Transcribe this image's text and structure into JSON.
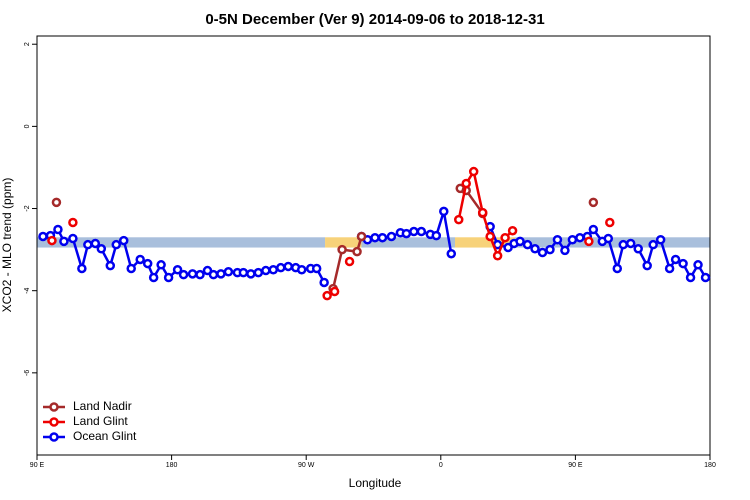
{
  "chart_data": {
    "type": "line",
    "title": "0-5N December (Ver 9)   2014-09-06 to 2018-12-31",
    "xlabel": "Longitude",
    "ylabel": "XCO2 - MLO trend (ppm)",
    "xlim": [
      90,
      540
    ],
    "ylim": [
      -8,
      2.2
    ],
    "xticks": [
      {
        "value": 90,
        "label": "90 E"
      },
      180,
      {
        "value": 270,
        "label": "90 W"
      },
      {
        "value": 360,
        "label": "0"
      },
      {
        "value": 450,
        "label": "90 E"
      },
      {
        "value": 540,
        "label": "180"
      }
    ],
    "yticks": [
      -6,
      -4,
      -2,
      0,
      2
    ],
    "legend": "lower left",
    "band_y": [
      -2.95,
      -2.7
    ],
    "bands": [
      {
        "x": [
          90,
          282.6
        ],
        "color": "#a9bfdc"
      },
      {
        "x": [
          282.6,
          307
        ],
        "color": "#f7d27a"
      },
      {
        "x": [
          307,
          369.5
        ],
        "color": "#a9bfdc"
      },
      {
        "x": [
          369.5,
          409.6
        ],
        "color": "#f7d27a"
      },
      {
        "x": [
          409.6,
          540
        ],
        "color": "#a9bfdc"
      }
    ],
    "series": [
      {
        "name": "Ocean Glint",
        "color": "#0000ee",
        "x": [
          94,
          99,
          104,
          108,
          114,
          120,
          124,
          129,
          133,
          139,
          143,
          148,
          153,
          159,
          164,
          168,
          173,
          178,
          184,
          188,
          194,
          199,
          204,
          208,
          213,
          218,
          224,
          228,
          233,
          238,
          243,
          248,
          253,
          258,
          263,
          267,
          273,
          277,
          282,
          null,
          307,
          311,
          316,
          321,
          327,
          333,
          337,
          342,
          347,
          353,
          357,
          362,
          367,
          null,
          393,
          398,
          405,
          409,
          413,
          418,
          423,
          428,
          433,
          438,
          443,
          448,
          453,
          458,
          462,
          468,
          472,
          478,
          482,
          487,
          492,
          498,
          502,
          507,
          513,
          517,
          522,
          527,
          532,
          537
        ],
        "values": [
          -2.68,
          -2.66,
          -2.51,
          -2.8,
          -2.73,
          -3.46,
          -2.88,
          -2.85,
          -2.98,
          -3.39,
          -2.88,
          -2.78,
          -3.46,
          -3.24,
          -3.34,
          -3.68,
          -3.37,
          -3.68,
          -3.49,
          -3.61,
          -3.59,
          -3.61,
          -3.51,
          -3.61,
          -3.59,
          -3.54,
          -3.56,
          -3.56,
          -3.59,
          -3.56,
          -3.51,
          -3.49,
          -3.44,
          -3.41,
          -3.44,
          -3.49,
          -3.46,
          -3.46,
          -3.8,
          null,
          -2.68,
          -2.76,
          -2.71,
          -2.71,
          -2.68,
          -2.59,
          -2.61,
          -2.56,
          -2.56,
          -2.63,
          -2.66,
          -2.07,
          -3.1,
          null,
          -2.44,
          -2.88,
          -2.95,
          -2.85,
          -2.8,
          -2.88,
          -2.98,
          -3.07,
          -3.0,
          -2.76,
          -3.02,
          -2.76,
          -2.71,
          -2.68,
          -2.51,
          -2.8,
          -2.73,
          -3.46,
          -2.88,
          -2.85,
          -2.98,
          -3.39,
          -2.88,
          -2.76,
          -3.46,
          -3.24,
          -3.34,
          -3.68,
          -3.37,
          -3.68
        ]
      },
      {
        "name": "Land Nadir",
        "color": "#a52a2a",
        "x": [
          103,
          null,
          288,
          294,
          304,
          307,
          null,
          373,
          377,
          388,
          null,
          462
        ],
        "values": [
          -1.85,
          null,
          -3.95,
          -3.0,
          -3.05,
          -2.68,
          null,
          -1.51,
          -1.56,
          -2.12,
          null,
          -1.85
        ]
      },
      {
        "name": "Land Glint",
        "color": "#ee0000",
        "x": [
          100,
          null,
          114,
          null,
          284,
          289,
          null,
          299,
          null,
          372,
          377,
          382,
          388,
          393,
          398,
          403,
          408,
          null,
          459,
          null,
          473
        ],
        "values": [
          -2.78,
          null,
          -2.34,
          null,
          -4.12,
          -4.02,
          null,
          -3.29,
          null,
          -2.27,
          -1.39,
          -1.1,
          -2.1,
          -2.68,
          -3.15,
          -2.71,
          -2.54,
          null,
          -2.8,
          null,
          -2.34
        ]
      }
    ]
  }
}
